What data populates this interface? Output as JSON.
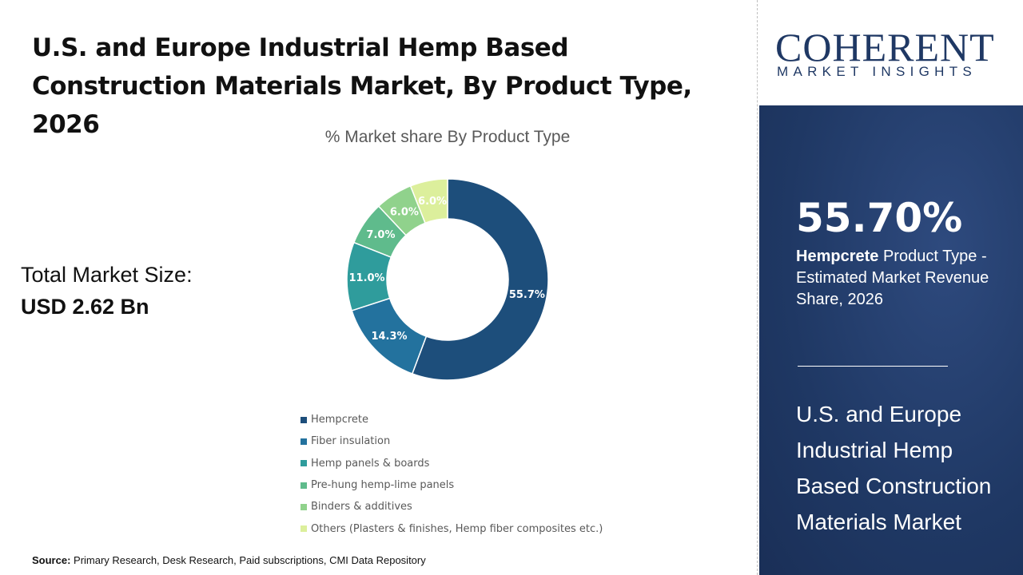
{
  "header": {
    "title": "U.S. and Europe Industrial Hemp Based Construction Materials Market, By Product Type, 2026"
  },
  "total": {
    "label": "Total Market Size:",
    "value": "USD 2.62 Bn"
  },
  "source": {
    "label": "Source:",
    "text": "Primary Research, Desk Research, Paid subscriptions, CMI Data Repository"
  },
  "logo": {
    "name": "COHERENT",
    "tagline": "MARKET INSIGHTS"
  },
  "panel": {
    "percent": "55.70%",
    "highlight": "Hempcrete",
    "desc": " Product Type - Estimated Market Revenue Share, 2026",
    "market": "U.S. and Europe Industrial Hemp Based Construction Materials Market"
  },
  "chart_data": {
    "type": "pie",
    "variant": "donut",
    "title": "% Market share By Product Type",
    "categories": [
      "Hempcrete",
      "Fiber insulation",
      "Hemp panels & boards",
      "Pre-hung hemp-lime panels",
      "Binders & additives",
      "Others (Plasters & finishes, Hemp fiber composites etc.)"
    ],
    "values": [
      55.7,
      14.3,
      11.0,
      7.0,
      6.0,
      6.0
    ],
    "labels": [
      "55.7%",
      "14.3%",
      "11.0%",
      "7.0%",
      "6.0%",
      "6.0%"
    ],
    "colors": [
      "#1d4e7b",
      "#23729e",
      "#2f9c9c",
      "#5fbb8c",
      "#90d28c",
      "#dcef9c"
    ],
    "legend_position": "bottom"
  }
}
